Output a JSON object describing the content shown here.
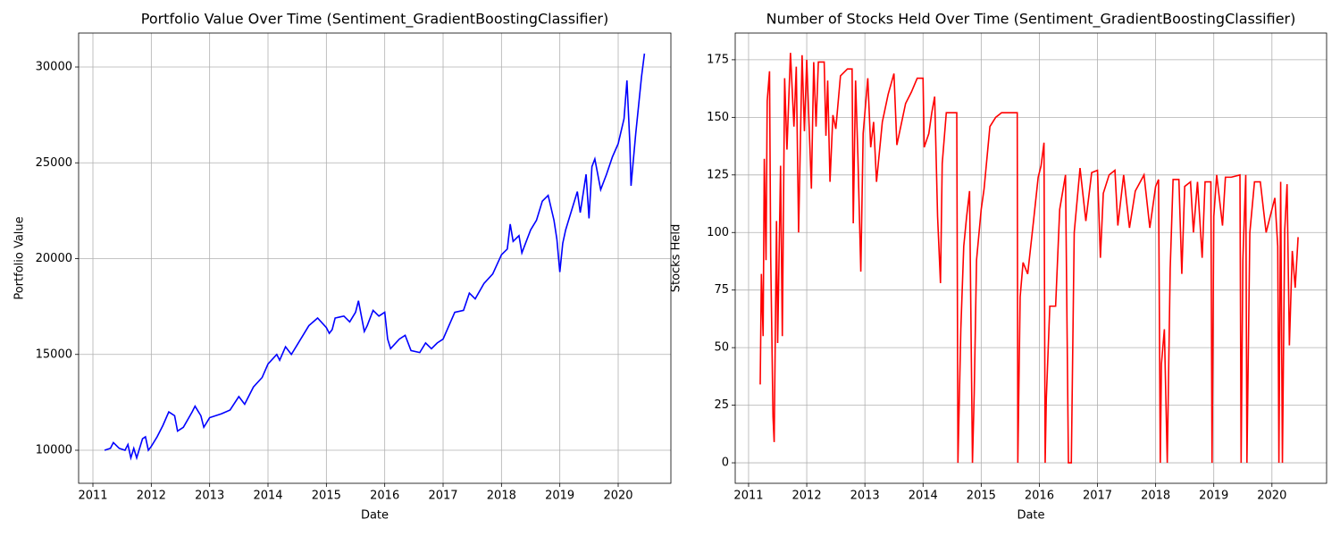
{
  "chart_data": [
    {
      "type": "line",
      "title": "Portfolio Value Over Time (Sentiment_GradientBoostingClassifier)",
      "xlabel": "Date",
      "ylabel": "Portfolio Value",
      "color": "#0000ff",
      "grid": true,
      "xlim": [
        2010.755,
        2020.903
      ],
      "ylim": [
        8275,
        31772
      ],
      "xticks": [
        2011,
        2012,
        2013,
        2014,
        2015,
        2016,
        2017,
        2018,
        2019,
        2020
      ],
      "yticks": [
        10000,
        15000,
        20000,
        25000,
        30000
      ],
      "x": [
        2011.2,
        2011.3,
        2011.35,
        2011.45,
        2011.55,
        2011.6,
        2011.65,
        2011.7,
        2011.75,
        2011.85,
        2011.9,
        2011.95,
        2012.0,
        2012.1,
        2012.2,
        2012.3,
        2012.4,
        2012.45,
        2012.55,
        2012.7,
        2012.75,
        2012.85,
        2012.9,
        2013.0,
        2013.2,
        2013.35,
        2013.5,
        2013.6,
        2013.75,
        2013.9,
        2014.0,
        2014.15,
        2014.2,
        2014.3,
        2014.4,
        2014.5,
        2014.6,
        2014.7,
        2014.85,
        2015.0,
        2015.05,
        2015.1,
        2015.15,
        2015.3,
        2015.4,
        2015.5,
        2015.55,
        2015.6,
        2015.65,
        2015.7,
        2015.8,
        2015.9,
        2016.0,
        2016.05,
        2016.1,
        2016.25,
        2016.35,
        2016.45,
        2016.6,
        2016.7,
        2016.8,
        2016.9,
        2017.0,
        2017.1,
        2017.2,
        2017.35,
        2017.45,
        2017.55,
        2017.7,
        2017.85,
        2018.0,
        2018.1,
        2018.15,
        2018.2,
        2018.3,
        2018.35,
        2018.5,
        2018.6,
        2018.7,
        2018.8,
        2018.9,
        2018.95,
        2019.0,
        2019.05,
        2019.1,
        2019.2,
        2019.3,
        2019.35,
        2019.45,
        2019.5,
        2019.55,
        2019.6,
        2019.7,
        2019.8,
        2019.9,
        2020.0,
        2020.1,
        2020.15,
        2020.2,
        2020.22,
        2020.3,
        2020.35,
        2020.4,
        2020.45
      ],
      "values": [
        10000,
        10100,
        10400,
        10100,
        10000,
        10300,
        9600,
        10100,
        9600,
        10600,
        10700,
        10000,
        10200,
        10700,
        11300,
        12000,
        11800,
        11000,
        11200,
        12000,
        12300,
        11800,
        11200,
        11700,
        11900,
        12100,
        12800,
        12400,
        13300,
        13800,
        14500,
        15000,
        14700,
        15400,
        15000,
        15500,
        16000,
        16500,
        16900,
        16400,
        16100,
        16300,
        16900,
        17000,
        16700,
        17200,
        17800,
        17000,
        16200,
        16500,
        17300,
        17000,
        17200,
        15800,
        15300,
        15800,
        16000,
        15200,
        15100,
        15600,
        15300,
        15600,
        15800,
        16500,
        17200,
        17300,
        18200,
        17900,
        18700,
        19200,
        20200,
        20500,
        21800,
        20900,
        21200,
        20300,
        21500,
        22000,
        23000,
        23300,
        22000,
        21000,
        19300,
        20800,
        21500,
        22500,
        23500,
        22400,
        24400,
        22100,
        24800,
        25200,
        23600,
        24400,
        25300,
        26000,
        27300,
        29300,
        26000,
        23800,
        26500,
        28000,
        29500,
        30700
      ]
    },
    {
      "type": "line",
      "title": "Number of Stocks Held Over Time (Sentiment_GradientBoostingClassifier)",
      "xlabel": "Date",
      "ylabel": "Stocks Held",
      "color": "#ff0000",
      "grid": true,
      "xlim": [
        2010.77,
        2020.94
      ],
      "ylim": [
        -8.9,
        186.6
      ],
      "xticks": [
        2011,
        2012,
        2013,
        2014,
        2015,
        2016,
        2017,
        2018,
        2019,
        2020
      ],
      "yticks": [
        0,
        25,
        50,
        75,
        100,
        125,
        150,
        175
      ],
      "x": [
        2011.2,
        2011.22,
        2011.25,
        2011.27,
        2011.3,
        2011.32,
        2011.36,
        2011.38,
        2011.42,
        2011.44,
        2011.48,
        2011.5,
        2011.55,
        2011.58,
        2011.62,
        2011.66,
        2011.72,
        2011.78,
        2011.82,
        2011.86,
        2011.92,
        2011.96,
        2012.0,
        2012.08,
        2012.12,
        2012.16,
        2012.2,
        2012.3,
        2012.33,
        2012.36,
        2012.4,
        2012.45,
        2012.5,
        2012.58,
        2012.7,
        2012.78,
        2012.8,
        2012.84,
        2012.88,
        2012.93,
        2012.97,
        2013.05,
        2013.1,
        2013.15,
        2013.2,
        2013.3,
        2013.4,
        2013.5,
        2013.55,
        2013.6,
        2013.7,
        2013.8,
        2013.9,
        2014.0,
        2014.02,
        2014.1,
        2014.15,
        2014.2,
        2014.25,
        2014.3,
        2014.33,
        2014.4,
        2014.58,
        2014.6,
        2014.65,
        2014.7,
        2014.75,
        2014.8,
        2014.85,
        2014.88,
        2014.92,
        2015.0,
        2015.05,
        2015.15,
        2015.25,
        2015.35,
        2015.62,
        2015.63,
        2015.67,
        2015.72,
        2015.8,
        2015.9,
        2015.98,
        2016.03,
        2016.08,
        2016.1,
        2016.12,
        2016.18,
        2016.28,
        2016.35,
        2016.45,
        2016.5,
        2016.55,
        2016.6,
        2016.7,
        2016.8,
        2016.9,
        2017.0,
        2017.05,
        2017.1,
        2017.2,
        2017.3,
        2017.35,
        2017.45,
        2017.55,
        2017.65,
        2017.8,
        2017.9,
        2018.0,
        2018.05,
        2018.08,
        2018.1,
        2018.15,
        2018.2,
        2018.25,
        2018.3,
        2018.4,
        2018.45,
        2018.5,
        2018.6,
        2018.65,
        2018.72,
        2018.8,
        2018.85,
        2018.95,
        2018.97,
        2019.0,
        2019.05,
        2019.15,
        2019.2,
        2019.3,
        2019.45,
        2019.47,
        2019.5,
        2019.55,
        2019.57,
        2019.62,
        2019.7,
        2019.8,
        2019.9,
        2020.0,
        2020.05,
        2020.1,
        2020.12,
        2020.15,
        2020.18,
        2020.22,
        2020.26,
        2020.3,
        2020.35,
        2020.4,
        2020.45
      ],
      "values": [
        34,
        82,
        55,
        132,
        88,
        157,
        170,
        90,
        20,
        9,
        105,
        52,
        129,
        55,
        167,
        136,
        178,
        146,
        172,
        100,
        177,
        144,
        175,
        119,
        174,
        146,
        174,
        174,
        142,
        166,
        122,
        151,
        145,
        168,
        171,
        171,
        104,
        166,
        133,
        83,
        143,
        167,
        137,
        148,
        122,
        148,
        160,
        169,
        138,
        144,
        156,
        161,
        167,
        167,
        137,
        143,
        152,
        159,
        107,
        78,
        130,
        152,
        152,
        0,
        58,
        94,
        107,
        118,
        0,
        30,
        88,
        110,
        119,
        146,
        150,
        152,
        152,
        0,
        72,
        87,
        82,
        105,
        124,
        129,
        139,
        0,
        28,
        68,
        68,
        110,
        125,
        0,
        0,
        100,
        128,
        105,
        126,
        127,
        89,
        117,
        125,
        127,
        103,
        125,
        102,
        118,
        125,
        102,
        120,
        123,
        0,
        43,
        58,
        0,
        84,
        123,
        123,
        82,
        120,
        122,
        100,
        122,
        89,
        122,
        122,
        0,
        107,
        125,
        103,
        124,
        124,
        125,
        0,
        88,
        125,
        0,
        100,
        122,
        122,
        100,
        110,
        115,
        94,
        0,
        122,
        0,
        101,
        121,
        51,
        92,
        76,
        98
      ]
    }
  ]
}
